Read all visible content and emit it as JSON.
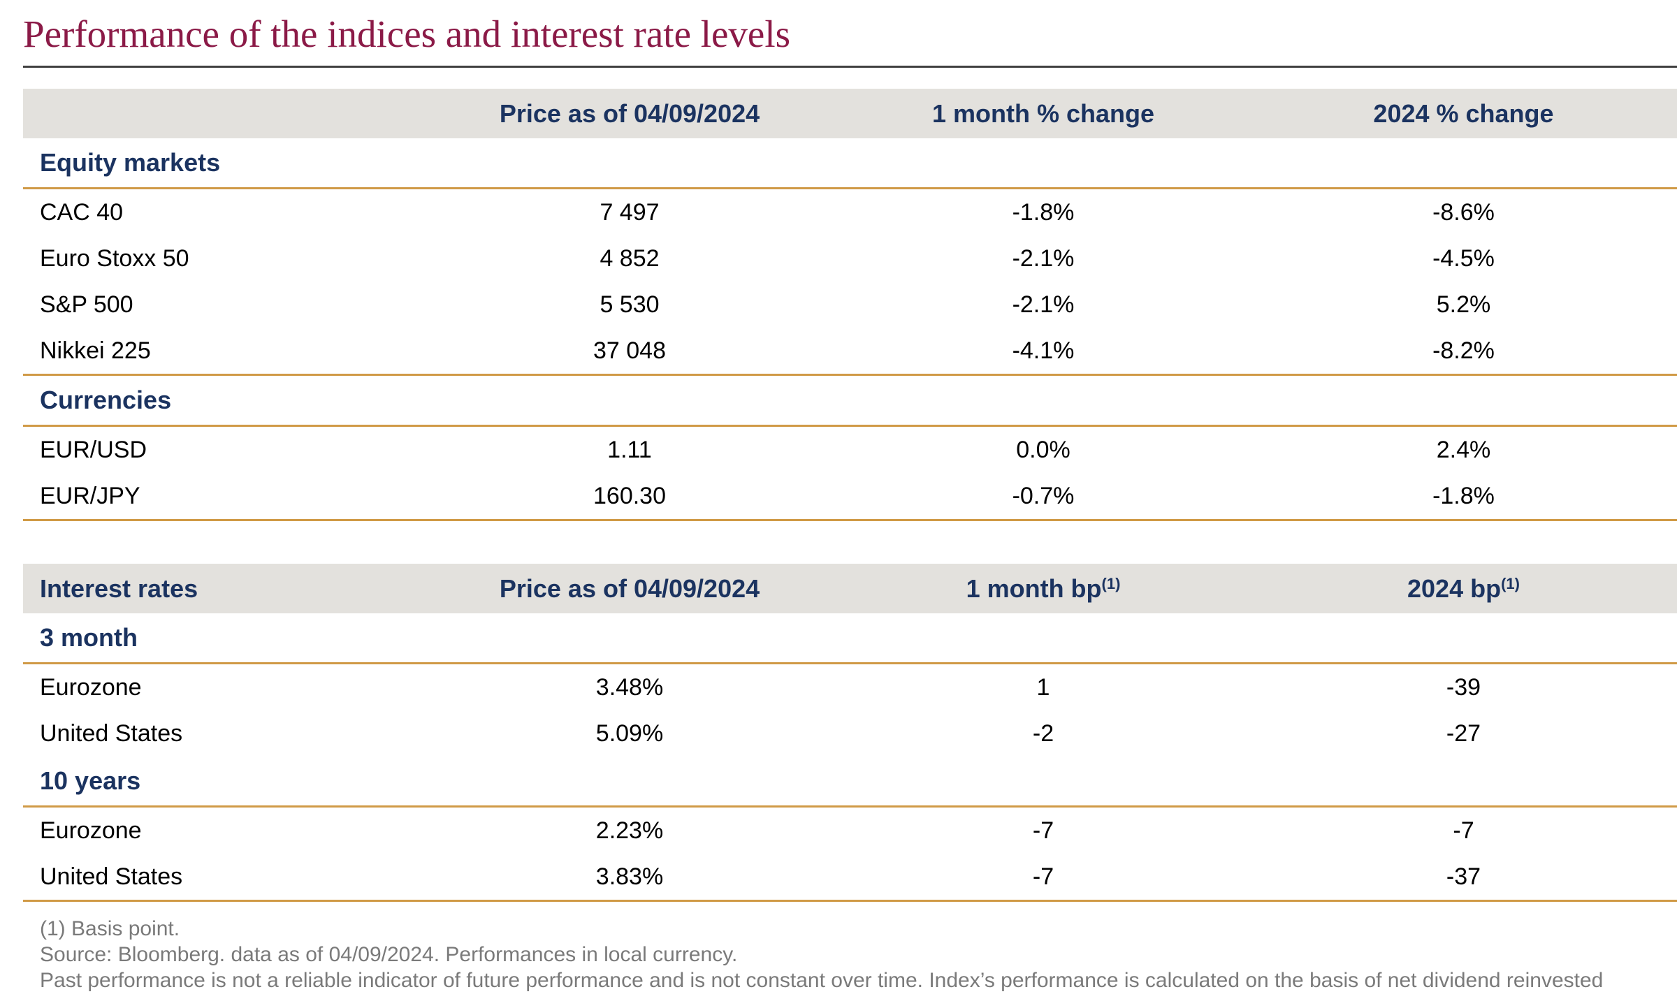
{
  "title": "Performance of the indices and interest rate levels",
  "table1": {
    "header": {
      "label": "",
      "price": "Price as of 04/09/2024",
      "month": "1 month % change",
      "ytd": "2024 % change"
    },
    "sections": [
      {
        "name": "Equity markets",
        "rows": [
          {
            "label": "CAC 40",
            "price": "7 497",
            "month": "-1.8%",
            "ytd": "-8.6%"
          },
          {
            "label": "Euro Stoxx 50",
            "price": "4 852",
            "month": "-2.1%",
            "ytd": "-4.5%"
          },
          {
            "label": "S&P 500",
            "price": "5 530",
            "month": "-2.1%",
            "ytd": "5.2%"
          },
          {
            "label": "Nikkei 225",
            "price": "37 048",
            "month": "-4.1%",
            "ytd": "-8.2%"
          }
        ]
      },
      {
        "name": "Currencies",
        "rows": [
          {
            "label": "EUR/USD",
            "price": "1.11",
            "month": "0.0%",
            "ytd": "2.4%"
          },
          {
            "label": "EUR/JPY",
            "price": "160.30",
            "month": "-0.7%",
            "ytd": "-1.8%"
          }
        ]
      }
    ]
  },
  "table2": {
    "header": {
      "label": "Interest rates",
      "price": "Price as of 04/09/2024",
      "month": "1 month bp",
      "ytd": "2024 bp",
      "footnote_mark": "(1)"
    },
    "sections": [
      {
        "name": "3 month",
        "rows": [
          {
            "label": "Eurozone",
            "price": "3.48%",
            "month": "1",
            "ytd": "-39"
          },
          {
            "label": "United States",
            "price": "5.09%",
            "month": "-2",
            "ytd": "-27"
          }
        ]
      },
      {
        "name": "10 years",
        "rows": [
          {
            "label": "Eurozone",
            "price": "2.23%",
            "month": "-7",
            "ytd": "-7"
          },
          {
            "label": "United States",
            "price": "3.83%",
            "month": "-7",
            "ytd": "-37"
          }
        ]
      }
    ]
  },
  "notes": [
    "(1) Basis point.",
    "Source: Bloomberg. data as of 04/09/2024. Performances in local currency.",
    "Past performance is not a reliable indicator of future performance and is not constant over time. Index’s performance is calculated on the basis of net dividend reinvested"
  ],
  "colors": {
    "title": "#8b1a47",
    "header_bg": "#e3e1dd",
    "header_text": "#1b3360",
    "rule": "#d09a46",
    "notes": "#7a7a7a"
  }
}
